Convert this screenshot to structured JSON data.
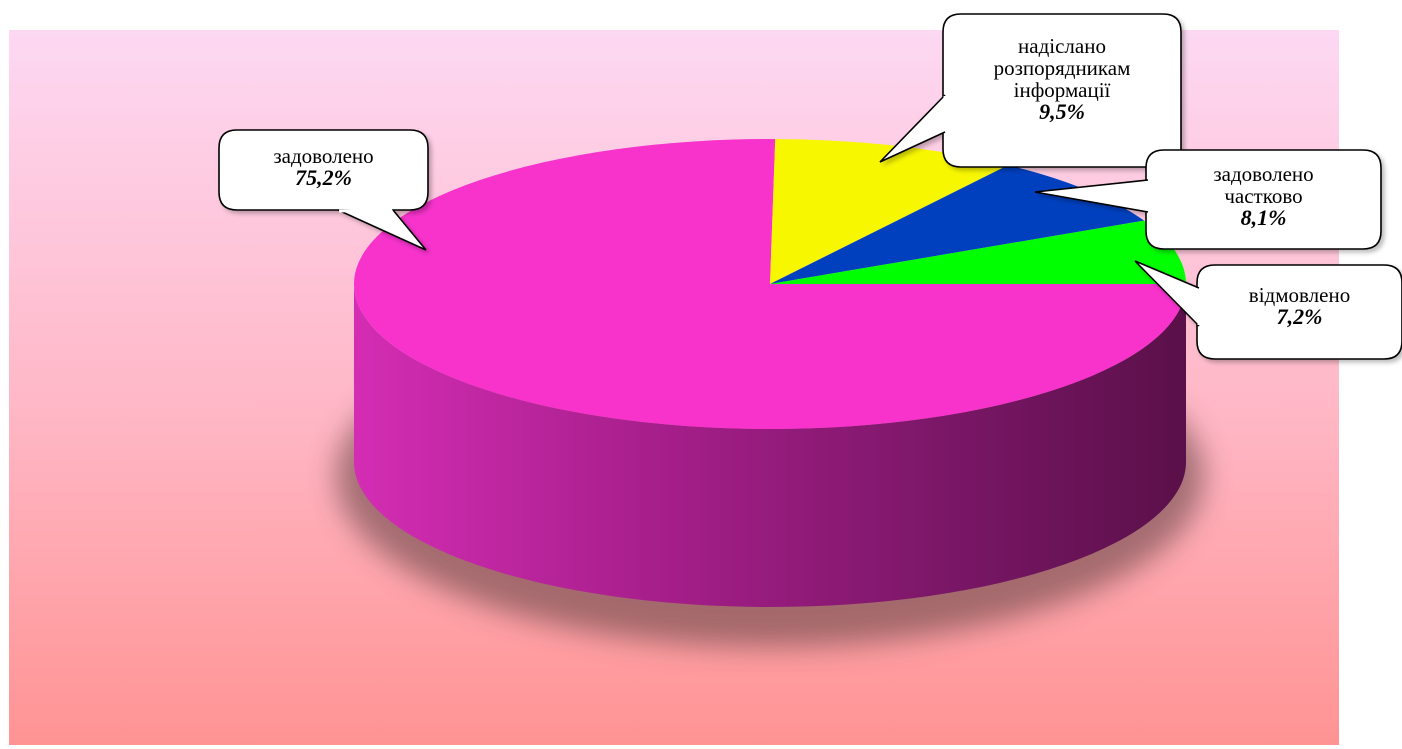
{
  "chart_data": {
    "type": "pie",
    "style": "3d-pie",
    "slices": [
      {
        "label": "задоволено",
        "value": 75.2,
        "value_label": "75,2%",
        "color": "#f733cc"
      },
      {
        "label": "надіслано розпорядникам інформації",
        "label_lines": [
          "надіслано",
          "розпорядникам",
          "інформації"
        ],
        "value": 9.5,
        "value_label": "9,5%",
        "color": "#f7f700"
      },
      {
        "label": "задоволено частково",
        "label_lines": [
          "задоволено",
          "частково"
        ],
        "value": 8.1,
        "value_label": "8,1%",
        "color": "#0040bf"
      },
      {
        "label": "відмовлено",
        "value": 7.2,
        "value_label": "7,2%",
        "color": "#00ff00"
      }
    ],
    "background_gradient": [
      "#fdd8f3",
      "#ff9393"
    ],
    "legend": "none"
  }
}
